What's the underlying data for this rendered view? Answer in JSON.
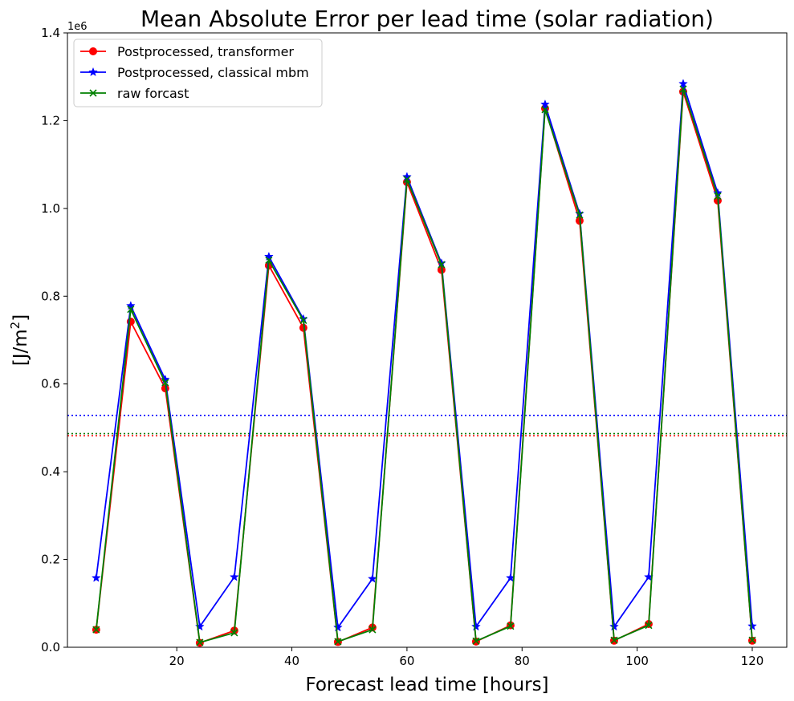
{
  "chart_data": {
    "type": "line",
    "title": "Mean Absolute Error per lead time (solar radiation)",
    "xlabel": "Forecast lead time [hours]",
    "ylabel_base": "[J/m",
    "ylabel_sup": "2",
    "ylabel_end": "]",
    "y_multiplier": "1e6",
    "xlim": [
      1,
      126
    ],
    "ylim": [
      0,
      1400000
    ],
    "xticks": [
      20,
      40,
      60,
      80,
      100,
      120
    ],
    "xtick_labels": [
      "20",
      "40",
      "60",
      "80",
      "100",
      "120"
    ],
    "yticks": [
      0,
      200000,
      400000,
      600000,
      800000,
      1000000,
      1200000,
      1400000
    ],
    "ytick_labels": [
      "0.0",
      "0.2",
      "0.4",
      "0.6",
      "0.8",
      "1.0",
      "1.2",
      "1.4"
    ],
    "grid": false,
    "legend_position": "top-left",
    "x": [
      6,
      12,
      18,
      24,
      30,
      36,
      42,
      48,
      54,
      60,
      66,
      72,
      78,
      84,
      90,
      96,
      102,
      108,
      114,
      120
    ],
    "series": [
      {
        "name": "Postprocessed, transformer",
        "color": "#ff0000",
        "marker": "circle",
        "values": [
          40000,
          742000,
          590000,
          10000,
          38000,
          870000,
          728000,
          12000,
          45000,
          1060000,
          860000,
          13000,
          50000,
          1228000,
          972000,
          15000,
          53000,
          1266000,
          1018000,
          15000
        ],
        "mean": 482000
      },
      {
        "name": "Postprocessed, classical mbm",
        "color": "#0000ff",
        "marker": "star",
        "values": [
          158000,
          778000,
          610000,
          47000,
          160000,
          890000,
          748000,
          45000,
          156000,
          1072000,
          875000,
          47000,
          158000,
          1237000,
          988000,
          47000,
          160000,
          1284000,
          1035000,
          48000
        ],
        "mean": 528000
      },
      {
        "name": "raw forcast",
        "color": "#008000",
        "marker": "x",
        "values": [
          40000,
          770000,
          603000,
          11000,
          33000,
          882000,
          745000,
          13000,
          40000,
          1066000,
          872000,
          14000,
          48000,
          1225000,
          985000,
          16000,
          50000,
          1272000,
          1028000,
          16000
        ],
        "mean": 487000
      }
    ]
  }
}
